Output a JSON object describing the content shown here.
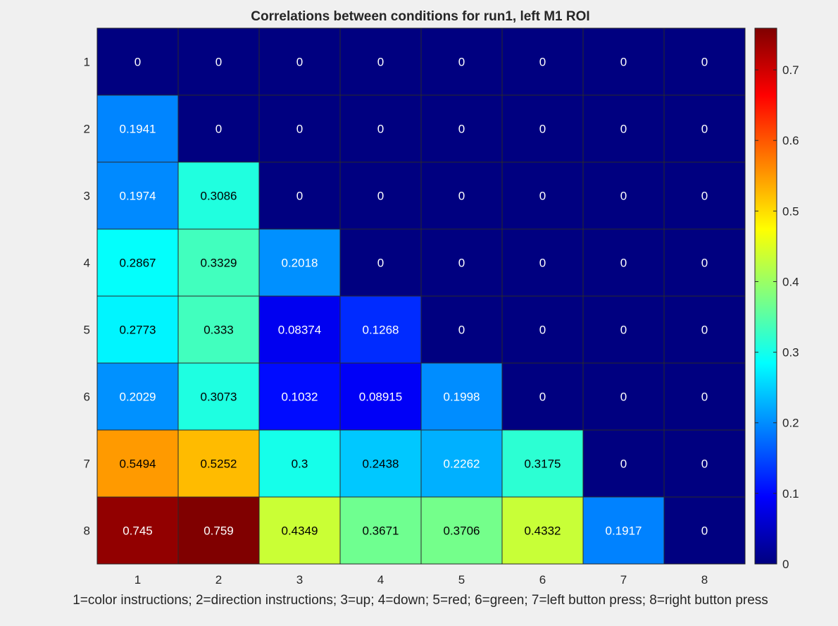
{
  "chart_data": {
    "type": "heatmap",
    "title": "Correlations between conditions for run1, left M1 ROI",
    "xlabel": "1=color instructions; 2=direction instructions; 3=up; 4=down; 5=red; 6=green; 7=left button press; 8=right button press",
    "ylabel": "",
    "x_categories": [
      "1",
      "2",
      "3",
      "4",
      "5",
      "6",
      "7",
      "8"
    ],
    "y_categories": [
      "1",
      "2",
      "3",
      "4",
      "5",
      "6",
      "7",
      "8"
    ],
    "values": [
      [
        "0",
        "0",
        "0",
        "0",
        "0",
        "0",
        "0",
        "0"
      ],
      [
        "0.1941",
        "0",
        "0",
        "0",
        "0",
        "0",
        "0",
        "0"
      ],
      [
        "0.1974",
        "0.3086",
        "0",
        "0",
        "0",
        "0",
        "0",
        "0"
      ],
      [
        "0.2867",
        "0.3329",
        "0.2018",
        "0",
        "0",
        "0",
        "0",
        "0"
      ],
      [
        "0.2773",
        "0.333",
        "0.08374",
        "0.1268",
        "0",
        "0",
        "0",
        "0"
      ],
      [
        "0.2029",
        "0.3073",
        "0.1032",
        "0.08915",
        "0.1998",
        "0",
        "0",
        "0"
      ],
      [
        "0.5494",
        "0.5252",
        "0.3",
        "0.2438",
        "0.2262",
        "0.3175",
        "0",
        "0"
      ],
      [
        "0.745",
        "0.759",
        "0.4349",
        "0.3671",
        "0.3706",
        "0.4332",
        "0.1917",
        "0"
      ]
    ],
    "colorbar": {
      "colormap": "jet",
      "range": [
        0,
        0.759
      ],
      "ticks": [
        "0",
        "0.1",
        "0.2",
        "0.3",
        "0.4",
        "0.5",
        "0.6",
        "0.7"
      ]
    },
    "grid": true,
    "legend": "none"
  }
}
